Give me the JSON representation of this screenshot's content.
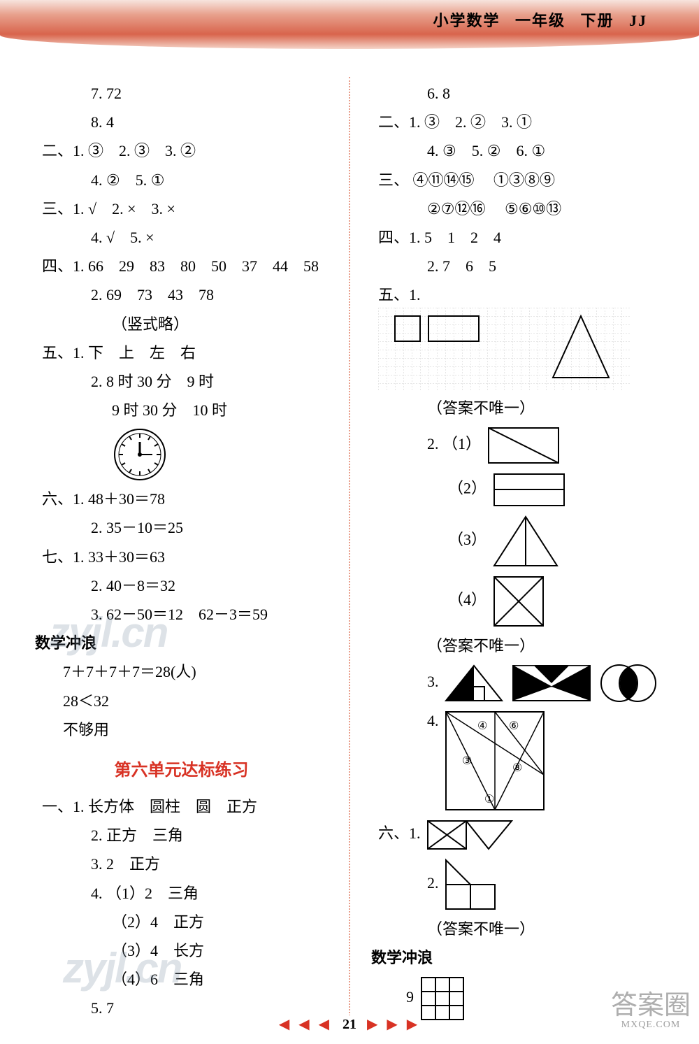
{
  "header": {
    "subject": "小学数学",
    "grade": "一年级",
    "volume": "下册",
    "code": "JJ"
  },
  "left": {
    "l7": "7. 72",
    "l8": "8. 4",
    "s2a": "二、1. ③　2. ③　3. ②",
    "s2b": "4. ②　5. ①",
    "s3a": "三、1. √　2. ×　3. ×",
    "s3b": "4. √　5. ×",
    "s4a": "四、1. 66　29　83　80　50　37　44　58",
    "s4b": "2. 69　73　43　78",
    "s4c": "（竖式略）",
    "s5a": "五、1. 下　上　左　右",
    "s5b": "2. 8 时 30 分　9 时",
    "s5c": "9 时 30 分　10 时",
    "s6a": "六、1. 48＋30＝78",
    "s6b": "2. 35－10＝25",
    "s7a": "七、1. 33＋30＝63",
    "s7b": "2. 40－8＝32",
    "s7c": "3. 62－50＝12　62－3＝59",
    "surf": "数学冲浪",
    "surf1": "7＋7＋7＋7＝28(人)",
    "surf2": "28＜32",
    "surf3": "不够用",
    "title6": "第六单元达标练习",
    "u1a": "一、1. 长方体　圆柱　圆　正方",
    "u1b": "2. 正方　三角",
    "u1c": "3. 2　正方",
    "u1d": "4. （1）2　三角",
    "u1e": "（2）4　正方",
    "u1f": "（3）4　长方",
    "u1g": "（4）6　三角",
    "u1h": "5. 7"
  },
  "right": {
    "r6": "6. 8",
    "s2a": "二、1. ③　2. ②　3. ①",
    "s2b": "4. ③　5. ②　6. ①",
    "s3lbl": "三、",
    "s3g1": [
      "④",
      "⑪",
      "⑭",
      "⑮"
    ],
    "s3g2": [
      "①",
      "③",
      "⑧",
      "⑨"
    ],
    "s3g3": [
      "②",
      "⑦",
      "⑫",
      "⑯"
    ],
    "s3g4": [
      "⑤",
      "⑥",
      "⑩",
      "⑬"
    ],
    "s4a": "四、1. 5　1　2　4",
    "s4b": "2. 7　6　5",
    "s5lbl": "五、1.",
    "note1": "（答案不唯一）",
    "q2_1": "2. （1）",
    "q2_2": "（2）",
    "q2_3": "（3）",
    "q2_4": "（4）",
    "note2": "（答案不唯一）",
    "q3": "3.",
    "q4": "4.",
    "s6lbl": "六、1.",
    "s6b": "2.",
    "note3": "（答案不唯一）",
    "surf": "数学冲浪",
    "surf1": "9"
  },
  "footer": {
    "page": "21"
  },
  "watermark": "zyjl.cn",
  "badge": {
    "text": "答案圈",
    "url": "MXQE.COM"
  }
}
